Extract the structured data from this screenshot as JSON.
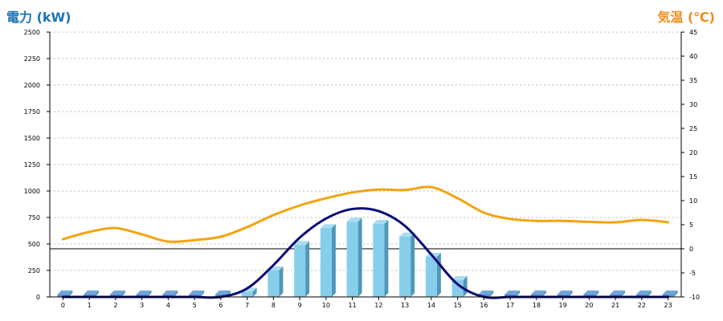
{
  "chart_data": {
    "type": "bar",
    "subtype": "bar-line-combo",
    "titles": {
      "left": "電力 (kW)",
      "right": "気温 (℃)"
    },
    "x": [
      "0",
      "1",
      "2",
      "3",
      "4",
      "5",
      "6",
      "7",
      "8",
      "9",
      "10",
      "11",
      "12",
      "13",
      "14",
      "15",
      "16",
      "17",
      "18",
      "19",
      "20",
      "21",
      "22",
      "23"
    ],
    "y_left": {
      "min": 0,
      "max": 2500,
      "ticks": [
        0,
        250,
        500,
        750,
        1000,
        1250,
        1500,
        1750,
        2000,
        2250,
        2500
      ]
    },
    "y_right": {
      "min": -10,
      "max": 45,
      "ticks": [
        -10,
        -5,
        0,
        5,
        10,
        15,
        20,
        25,
        30,
        35,
        40,
        45
      ],
      "zero_line": true
    },
    "grid": true,
    "series": [
      {
        "type": "bar",
        "axis": "left",
        "values": [
          0,
          0,
          0,
          0,
          0,
          0,
          0,
          50,
          250,
          490,
          650,
          710,
          690,
          570,
          380,
          160,
          0,
          0,
          0,
          0,
          0,
          0,
          0,
          0
        ],
        "color": "#87CEEB",
        "shade": "#4E97B8",
        "top": "#A9DDF4"
      },
      {
        "type": "line",
        "axis": "left",
        "values": [
          0,
          0,
          0,
          0,
          0,
          0,
          0,
          80,
          300,
          560,
          740,
          830,
          810,
          670,
          400,
          120,
          0,
          0,
          0,
          0,
          0,
          0,
          0,
          0
        ],
        "color": "#0A0A7A"
      },
      {
        "type": "line",
        "axis": "right",
        "values": [
          2,
          3.5,
          4.3,
          3,
          1.5,
          1.8,
          2.5,
          4.5,
          7,
          9,
          10.5,
          11.7,
          12.3,
          12.2,
          12.8,
          10.5,
          7.5,
          6.2,
          5.8,
          5.8,
          5.6,
          5.5,
          6,
          5.5
        ],
        "color": "#F4A311"
      }
    ],
    "colors": {
      "left_title": "#1A73B6",
      "right_title": "#F08C1A",
      "axis": "#000000",
      "grid": "#BDBDBD",
      "tick_text": "#000000"
    }
  }
}
